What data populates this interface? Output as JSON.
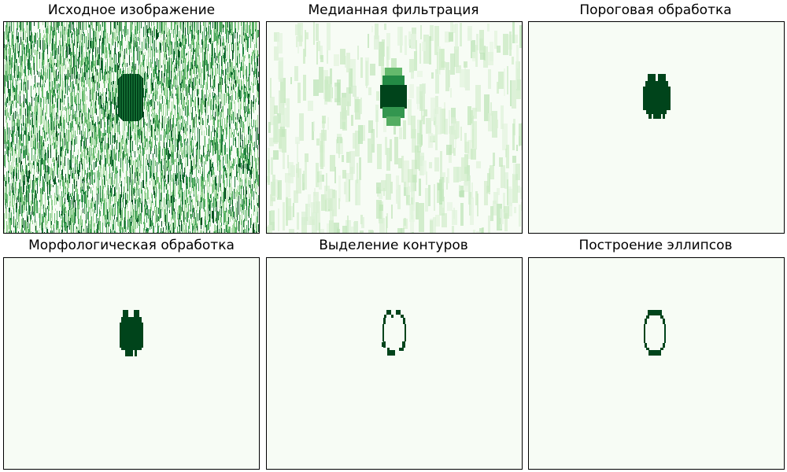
{
  "figure": {
    "colormap": "Greens",
    "colors": {
      "background": "#f7fcf5",
      "dark": "#00441b",
      "mid": "#238b45",
      "light": "#a1d99b",
      "frame": "#000000"
    }
  },
  "chart_data": [
    {
      "type": "heatmap",
      "title": "Исходное изображение",
      "content": "dense vertical noise streaks with a dark elliptical blob near upper center",
      "grid": false,
      "axes_visible": false
    },
    {
      "type": "heatmap",
      "title": "Медианная фильтрация",
      "content": "faint vertical streaks with a smoothed dark blob",
      "grid": false,
      "axes_visible": false
    },
    {
      "type": "heatmap",
      "title": "Пороговая обработка",
      "content": "binary mask: solid dark blob on light background",
      "grid": false,
      "axes_visible": false
    },
    {
      "type": "heatmap",
      "title": "Морфологическая обработка",
      "content": "binary mask after morphology: solid dark blob",
      "grid": false,
      "axes_visible": false
    },
    {
      "type": "heatmap",
      "title": "Выделение контуров",
      "content": "blob outline (contour pixels)",
      "grid": false,
      "axes_visible": false
    },
    {
      "type": "heatmap",
      "title": "Построение эллипсов",
      "content": "fitted ellipse outline",
      "grid": false,
      "axes_visible": false
    }
  ]
}
